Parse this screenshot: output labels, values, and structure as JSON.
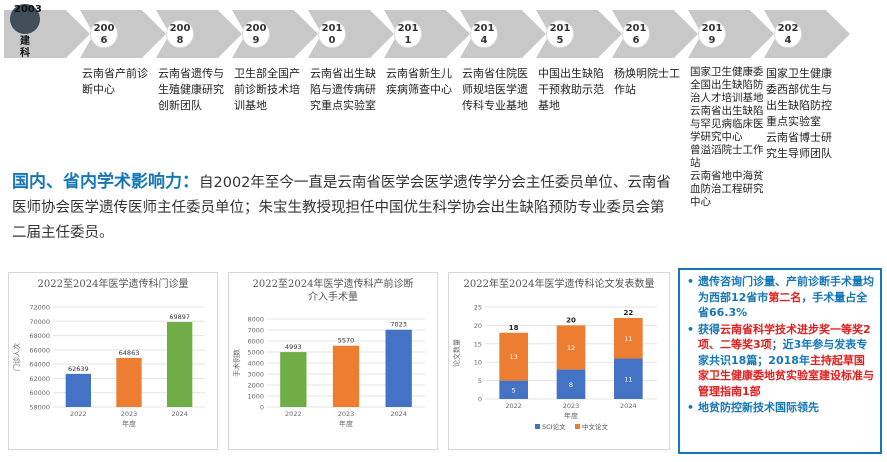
{
  "timeline": {
    "first": {
      "year": "2003",
      "label": "建科"
    },
    "items": [
      {
        "year": "2006",
        "text": "云南省产前诊断中心"
      },
      {
        "year": "2008",
        "text": "云南省遗传与生殖健康研究创新团队"
      },
      {
        "year": "2009",
        "text": "卫生部全国产前诊断技术培训基地"
      },
      {
        "year": "2010",
        "text": "云南省出生缺陷与遗传病研究重点实验室"
      },
      {
        "year": "2011",
        "text": "云南省新生儿疾病筛查中心"
      },
      {
        "year": "2014",
        "text": "云南省住院医师规培医学遗传科专业基地"
      },
      {
        "year": "2015",
        "text": "中国出生缺陷干预救助示范基地"
      },
      {
        "year": "2016",
        "text": "杨焕明院士工作站"
      },
      {
        "year": "2019",
        "text": "国家卫生健康委全国出生缺陷防治人才培训基地\n云南省出生缺陷与罕见病临床医学研究中心\n曾溢滔院士工作站\n云南省地中海贫血防治工程研究中心"
      },
      {
        "year": "2024",
        "text": "国家卫生健康委西部优生与出生缺陷防控重点实验室\n云南省博士研究生导师团队"
      }
    ]
  },
  "summary": {
    "highlight": "国内、省内学术影响力：",
    "text": "自2002年至今一直是云南省医学会医学遗传学分会主任委员单位、云南省医师协会医学遗传医师主任委员单位；朱宝生教授现担任中国优生科学协会出生缺陷预防专业委员会第二届主任委员。"
  },
  "notes": {
    "items": [
      [
        {
          "t": "遗传咨询门诊量、产前诊断手术量均为西部12省市"
        },
        {
          "t": "第二名",
          "c": "red"
        },
        {
          "t": "，手术量占全省66.3%"
        }
      ],
      [
        {
          "t": "获得"
        },
        {
          "t": "云南省科学技术进步奖一等奖2项、二等奖3项",
          "c": "red"
        },
        {
          "t": "；近3年参与发表专家共识18篇；2018年"
        },
        {
          "t": "主持起草国家卫生健康委地贫实验室建设标准与管理指南1部",
          "c": "red"
        }
      ],
      [
        {
          "t": "地贫防控新技术国际领先"
        }
      ]
    ]
  },
  "chart_data": [
    {
      "type": "bar",
      "title": "2022至2024年医学遗传科门诊量",
      "categories": [
        "2022",
        "2023",
        "2024"
      ],
      "values": [
        62639,
        64863,
        69897
      ],
      "colors": [
        "#4472c4",
        "#ed7d31",
        "#70ad47"
      ],
      "xlabel": "年度",
      "ylabel": "门诊人次",
      "ylim": [
        58000,
        72000
      ],
      "yticks": [
        58000,
        60000,
        62000,
        64000,
        66000,
        68000,
        70000,
        72000
      ],
      "grid": true
    },
    {
      "type": "bar",
      "title": "2022至2024年医学遗传科产前诊断介入手术量",
      "categories": [
        "2022",
        "2023",
        "2024"
      ],
      "values": [
        4993,
        5570,
        7023
      ],
      "colors": [
        "#70ad47",
        "#ed7d31",
        "#4472c4"
      ],
      "xlabel": "年度",
      "ylabel": "手术例数",
      "ylim": [
        0,
        8000
      ],
      "yticks": [
        0,
        1000,
        2000,
        3000,
        4000,
        5000,
        6000,
        7000,
        8000
      ],
      "grid": true
    },
    {
      "type": "bar",
      "stacked": true,
      "title": "2022年至2024年医学遗传科论文发表数量",
      "categories": [
        "2022",
        "2023",
        "2024"
      ],
      "series": [
        {
          "name": "SCI论文",
          "values": [
            5,
            8,
            11
          ],
          "color": "#4472c4"
        },
        {
          "name": "中文论文",
          "values": [
            13,
            12,
            11
          ],
          "color": "#ed7d31"
        }
      ],
      "totals": [
        18,
        20,
        22
      ],
      "xlabel": "年度",
      "ylabel": "论文数量",
      "ylim": [
        0,
        25
      ],
      "yticks": [
        0,
        5,
        10,
        15,
        20,
        25
      ],
      "grid": true
    }
  ]
}
